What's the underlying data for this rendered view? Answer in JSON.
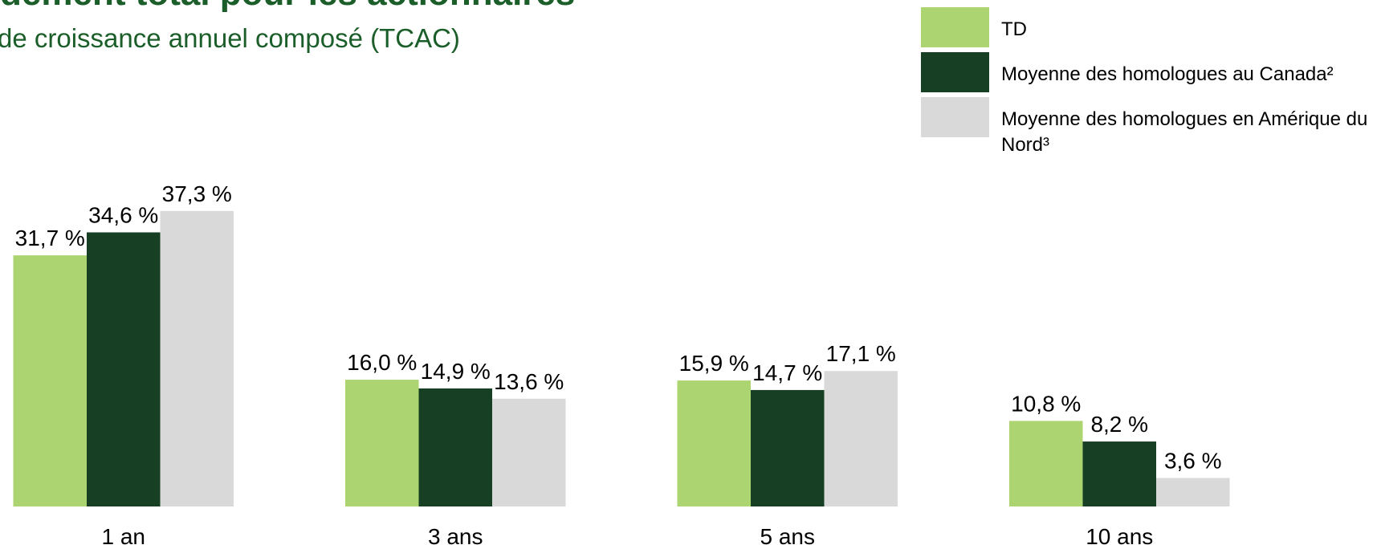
{
  "chart_data": {
    "type": "bar",
    "title": "dement total pour les actionnaires",
    "subtitle": "de croissance annuel composé (TCAC)",
    "categories": [
      "1 an",
      "3 ans",
      "5 ans",
      "10 ans"
    ],
    "series": [
      {
        "name": "TD",
        "color": "#acd471",
        "values": [
          31.7,
          16.0,
          15.9,
          10.8
        ],
        "value_labels": [
          "31,7 %",
          "16,0 %",
          "15,9 %",
          "10,8 %"
        ]
      },
      {
        "name": "Moyenne des homologues au Canada²",
        "color": "#173f24",
        "values": [
          34.6,
          14.9,
          14.7,
          8.2
        ],
        "value_labels": [
          "34,6 %",
          "14,9 %",
          "14,7 %",
          "8,2 %"
        ]
      },
      {
        "name": "Moyenne des homologues en Amérique du Nord³",
        "color": "#d9d9d9",
        "values": [
          37.3,
          13.6,
          17.1,
          3.6
        ],
        "value_labels": [
          "37,3 %",
          "13,6 %",
          "17,1 %",
          "3,6 %"
        ]
      }
    ],
    "legend": "top-right"
  }
}
